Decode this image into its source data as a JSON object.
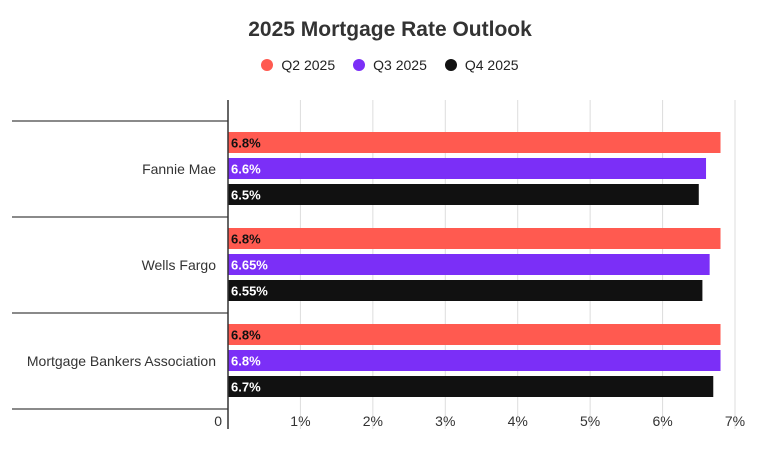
{
  "chart_data": {
    "type": "bar",
    "orientation": "horizontal",
    "title": "2025 Mortgage Rate Outlook",
    "categories": [
      "Fannie Mae",
      "Wells Fargo",
      "Mortgage Bankers Association"
    ],
    "series": [
      {
        "name": "Q2 2025",
        "color": "#FF5A50",
        "values": [
          6.8,
          6.8,
          6.8
        ],
        "labels": [
          "6.8%",
          "6.8%",
          "6.8%"
        ]
      },
      {
        "name": "Q3 2025",
        "color": "#7B2FF7",
        "values": [
          6.6,
          6.65,
          6.8
        ],
        "labels": [
          "6.6%",
          "6.65%",
          "6.8%"
        ]
      },
      {
        "name": "Q4 2025",
        "color": "#111111",
        "values": [
          6.5,
          6.55,
          6.7
        ],
        "labels": [
          "6.5%",
          "6.55%",
          "6.7%"
        ]
      }
    ],
    "xlim": [
      0,
      7
    ],
    "x_ticks": [
      0,
      1,
      2,
      3,
      4,
      5,
      6,
      7
    ],
    "x_tick_labels": [
      "0",
      "1%",
      "2%",
      "3%",
      "4%",
      "5%",
      "6%",
      "7%"
    ],
    "grid": true,
    "legend_position": "top-center"
  }
}
